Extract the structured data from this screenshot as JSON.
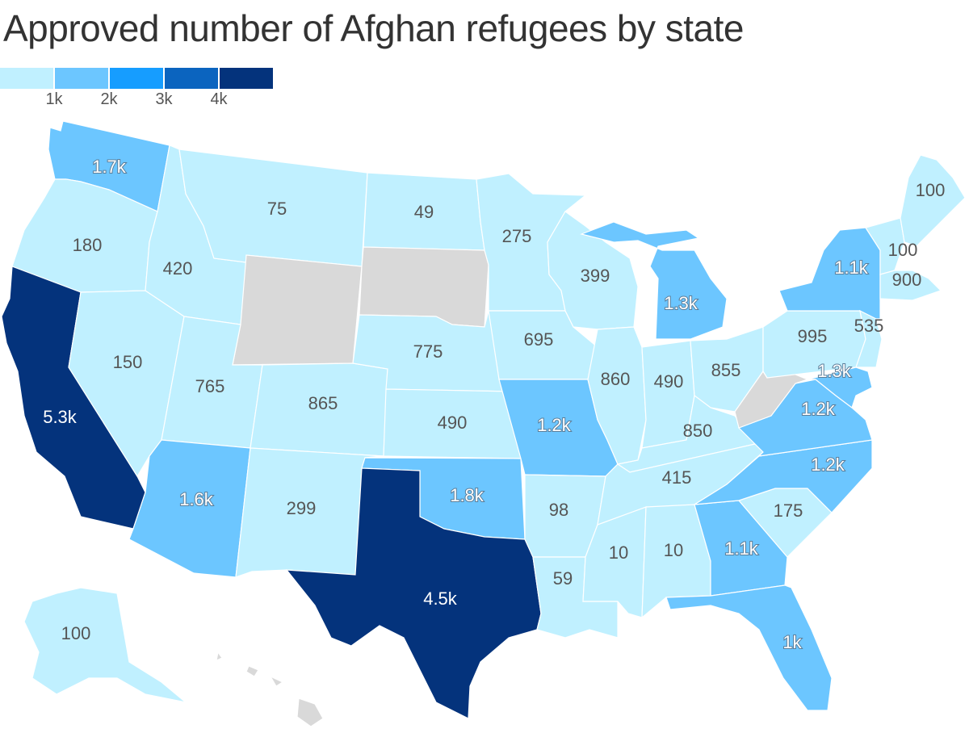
{
  "title": "Approved number of Afghan refugees by state",
  "legend": {
    "ticks": [
      "1k",
      "2k",
      "3k",
      "4k"
    ],
    "colors": [
      "#c0f0ff",
      "#6cc6ff",
      "#169dff",
      "#0b64bf",
      "#04337c"
    ]
  },
  "colors": {
    "no_data": "#d9d9d9",
    "c1": "#c0f0ff",
    "c2": "#6cc6ff",
    "c5": "#04337c"
  },
  "states": [
    {
      "abbr": "WA",
      "value_label": "1.7k",
      "value": 1700
    },
    {
      "abbr": "OR",
      "value_label": "180",
      "value": 180
    },
    {
      "abbr": "CA",
      "value_label": "5.3k",
      "value": 5300
    },
    {
      "abbr": "NV",
      "value_label": "150",
      "value": 150
    },
    {
      "abbr": "ID",
      "value_label": "420",
      "value": 420
    },
    {
      "abbr": "MT",
      "value_label": "75",
      "value": 75
    },
    {
      "abbr": "WY",
      "value_label": "",
      "value": null
    },
    {
      "abbr": "UT",
      "value_label": "765",
      "value": 765
    },
    {
      "abbr": "AZ",
      "value_label": "1.6k",
      "value": 1600
    },
    {
      "abbr": "CO",
      "value_label": "865",
      "value": 865
    },
    {
      "abbr": "NM",
      "value_label": "299",
      "value": 299
    },
    {
      "abbr": "ND",
      "value_label": "49",
      "value": 49
    },
    {
      "abbr": "SD",
      "value_label": "",
      "value": null
    },
    {
      "abbr": "NE",
      "value_label": "775",
      "value": 775
    },
    {
      "abbr": "KS",
      "value_label": "490",
      "value": 490
    },
    {
      "abbr": "OK",
      "value_label": "1.8k",
      "value": 1800
    },
    {
      "abbr": "TX",
      "value_label": "4.5k",
      "value": 4500
    },
    {
      "abbr": "MN",
      "value_label": "275",
      "value": 275
    },
    {
      "abbr": "IA",
      "value_label": "695",
      "value": 695
    },
    {
      "abbr": "MO",
      "value_label": "1.2k",
      "value": 1200
    },
    {
      "abbr": "AR",
      "value_label": "98",
      "value": 98
    },
    {
      "abbr": "LA",
      "value_label": "59",
      "value": 59
    },
    {
      "abbr": "WI",
      "value_label": "399",
      "value": 399
    },
    {
      "abbr": "IL",
      "value_label": "860",
      "value": 860
    },
    {
      "abbr": "MI",
      "value_label": "1.3k",
      "value": 1300
    },
    {
      "abbr": "IN",
      "value_label": "490",
      "value": 490
    },
    {
      "abbr": "OH",
      "value_label": "855",
      "value": 855
    },
    {
      "abbr": "KY",
      "value_label": "850",
      "value": 850
    },
    {
      "abbr": "TN",
      "value_label": "415",
      "value": 415
    },
    {
      "abbr": "MS",
      "value_label": "10",
      "value": 10
    },
    {
      "abbr": "AL",
      "value_label": "10",
      "value": 10
    },
    {
      "abbr": "GA",
      "value_label": "1.1k",
      "value": 1100
    },
    {
      "abbr": "FL",
      "value_label": "1k",
      "value": 1000
    },
    {
      "abbr": "SC",
      "value_label": "175",
      "value": 175
    },
    {
      "abbr": "NC",
      "value_label": "1.2k",
      "value": 1200
    },
    {
      "abbr": "VA",
      "value_label": "1.2k",
      "value": 1200
    },
    {
      "abbr": "WV",
      "value_label": "",
      "value": null
    },
    {
      "abbr": "PA",
      "value_label": "995",
      "value": 995
    },
    {
      "abbr": "NY",
      "value_label": "1.1k",
      "value": 1100
    },
    {
      "abbr": "NJ",
      "value_label": "535",
      "value": 535
    },
    {
      "abbr": "MD",
      "value_label": "1.3k",
      "value": 1300
    },
    {
      "abbr": "VT",
      "value_label": "100",
      "value": 100
    },
    {
      "abbr": "MA",
      "value_label": "900",
      "value": 900
    },
    {
      "abbr": "ME",
      "value_label": "100",
      "value": 100
    },
    {
      "abbr": "AK",
      "value_label": "100",
      "value": 100
    },
    {
      "abbr": "HI",
      "value_label": "",
      "value": null
    }
  ]
}
